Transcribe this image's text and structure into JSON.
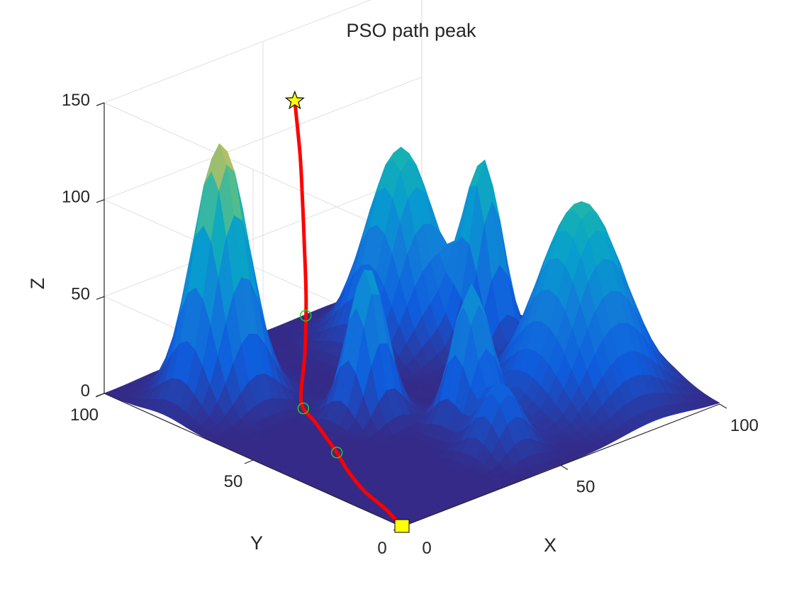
{
  "chart_data": {
    "type": "surface3d",
    "title": "PSO path peak",
    "xlabel": "X",
    "ylabel": "Y",
    "zlabel": "Z",
    "xlim": [
      0,
      100
    ],
    "ylim": [
      0,
      100
    ],
    "zlim": [
      0,
      150
    ],
    "xticks": [
      "0",
      "50",
      "100"
    ],
    "yticks": [
      "0",
      "50",
      "100"
    ],
    "zticks": [
      "0",
      "50",
      "100",
      "150"
    ],
    "grid": true,
    "colormap": "parula",
    "peaks": [
      {
        "x": 18,
        "y": 80,
        "height": 132,
        "width": 6.5
      },
      {
        "x": 36,
        "y": 50,
        "height": 78,
        "width": 4.5
      },
      {
        "x": 50,
        "y": 30,
        "height": 72,
        "width": 4.5
      },
      {
        "x": 45,
        "y": 15,
        "height": 35,
        "width": 5
      },
      {
        "x": 80,
        "y": 25,
        "height": 100,
        "width": 10
      },
      {
        "x": 80,
        "y": 58,
        "height": 95,
        "width": 4.5
      },
      {
        "x": 70,
        "y": 75,
        "height": 100,
        "width": 8
      }
    ],
    "path": {
      "color": "#ff0000",
      "points": [
        {
          "x": 0,
          "y": 0,
          "z": 0
        },
        {
          "x": 4,
          "y": 10,
          "z": 0
        },
        {
          "x": 7,
          "y": 20,
          "z": 0
        },
        {
          "x": 12,
          "y": 31,
          "z": 0
        },
        {
          "x": 17,
          "y": 40,
          "z": 0
        },
        {
          "x": 21,
          "y": 48,
          "z": 0
        },
        {
          "x": 25,
          "y": 56,
          "z": 0
        },
        {
          "x": 28,
          "y": 63,
          "z": 0
        },
        {
          "x": 31,
          "y": 67,
          "z": 3
        },
        {
          "x": 36,
          "y": 71,
          "z": 18
        },
        {
          "x": 42,
          "y": 77,
          "z": 38
        },
        {
          "x": 48,
          "y": 84,
          "z": 58
        },
        {
          "x": 53,
          "y": 90,
          "z": 75
        },
        {
          "x": 57,
          "y": 95,
          "z": 90
        },
        {
          "x": 60,
          "y": 100,
          "z": 113
        }
      ],
      "waypoints": [
        {
          "x": 17,
          "y": 40,
          "z": 0
        },
        {
          "x": 28,
          "y": 63,
          "z": 0
        },
        {
          "x": 40,
          "y": 75,
          "z": 32
        }
      ],
      "start": {
        "x": 0,
        "y": 0,
        "z": 0
      },
      "goal": {
        "x": 60,
        "y": 100,
        "z": 113
      }
    }
  }
}
